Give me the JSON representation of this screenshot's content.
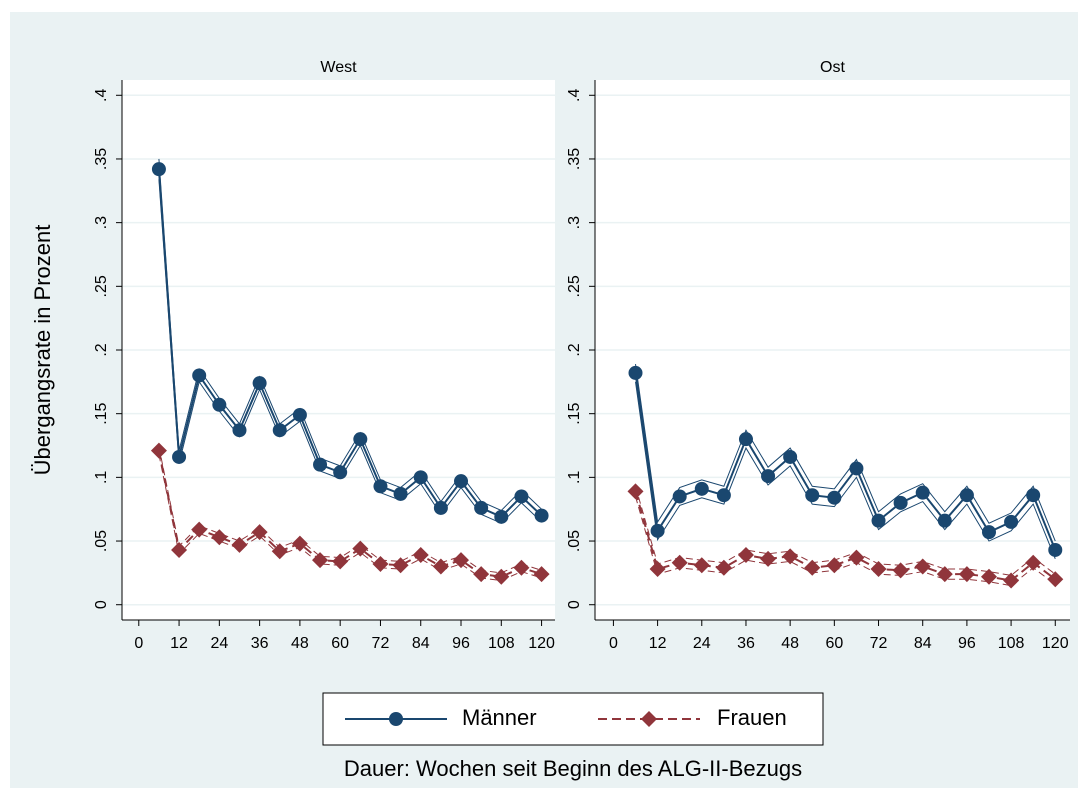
{
  "figure": {
    "ylabel": "Übergangsrate in Prozent",
    "xlabel": "Dauer: Wochen seit Beginn des ALG-II-Bezugs"
  },
  "chart_data": [
    {
      "type": "line",
      "title": "West",
      "x": [
        6,
        12,
        18,
        24,
        30,
        36,
        42,
        48,
        54,
        60,
        66,
        72,
        78,
        84,
        90,
        96,
        102,
        108,
        114,
        120
      ],
      "xlim": [
        -5,
        124
      ],
      "xticks": [
        0,
        12,
        24,
        36,
        48,
        60,
        72,
        84,
        96,
        108,
        120
      ],
      "ylim": [
        -0.012,
        0.412
      ],
      "yticks": [
        0,
        {
          "value": 0.05,
          "label": ".05"
        },
        {
          "value": 0.1,
          "label": ".1"
        },
        {
          "value": 0.15,
          "label": ".15"
        },
        {
          "value": 0.2,
          "label": ".2"
        },
        {
          "value": 0.25,
          "label": ".25"
        },
        {
          "value": 0.3,
          "label": ".3"
        },
        {
          "value": 0.35,
          "label": ".35"
        },
        {
          "value": 0.4,
          "label": ".4"
        }
      ],
      "grid": true,
      "series": [
        {
          "name": "Männer",
          "color": "#1a476f",
          "marker": "circle",
          "dash": false,
          "values": [
            0.342,
            0.116,
            0.18,
            0.157,
            0.137,
            0.174,
            0.137,
            0.149,
            0.11,
            0.104,
            0.13,
            0.093,
            0.087,
            0.1,
            0.076,
            0.097,
            0.076,
            0.069,
            0.085,
            0.07
          ],
          "lower": [
            0.334,
            0.111,
            0.175,
            0.152,
            0.132,
            0.169,
            0.132,
            0.144,
            0.105,
            0.099,
            0.125,
            0.088,
            0.082,
            0.095,
            0.071,
            0.092,
            0.071,
            0.064,
            0.08,
            0.065
          ],
          "upper": [
            0.35,
            0.121,
            0.185,
            0.162,
            0.142,
            0.179,
            0.142,
            0.154,
            0.115,
            0.109,
            0.135,
            0.098,
            0.092,
            0.105,
            0.081,
            0.102,
            0.081,
            0.074,
            0.09,
            0.075
          ]
        },
        {
          "name": "Frauen",
          "color": "#90353b",
          "marker": "diamond",
          "dash": true,
          "values": [
            0.121,
            0.043,
            0.059,
            0.053,
            0.047,
            0.057,
            0.042,
            0.048,
            0.035,
            0.034,
            0.044,
            0.032,
            0.031,
            0.039,
            0.03,
            0.035,
            0.024,
            0.022,
            0.029,
            0.024
          ],
          "lower": [
            0.118,
            0.04,
            0.056,
            0.05,
            0.044,
            0.054,
            0.039,
            0.045,
            0.032,
            0.031,
            0.041,
            0.029,
            0.028,
            0.036,
            0.027,
            0.032,
            0.021,
            0.019,
            0.026,
            0.021
          ],
          "upper": [
            0.124,
            0.046,
            0.062,
            0.056,
            0.05,
            0.06,
            0.045,
            0.051,
            0.038,
            0.037,
            0.047,
            0.035,
            0.034,
            0.042,
            0.033,
            0.038,
            0.027,
            0.025,
            0.032,
            0.027
          ]
        }
      ]
    },
    {
      "type": "line",
      "title": "Ost",
      "x": [
        6,
        12,
        18,
        24,
        30,
        36,
        42,
        48,
        54,
        60,
        66,
        72,
        78,
        84,
        90,
        96,
        102,
        108,
        114,
        120
      ],
      "xlim": [
        -5,
        124
      ],
      "xticks": [
        0,
        12,
        24,
        36,
        48,
        60,
        72,
        84,
        96,
        108,
        120
      ],
      "ylim": [
        -0.012,
        0.412
      ],
      "yticks": [
        0,
        {
          "value": 0.05,
          "label": ".05"
        },
        {
          "value": 0.1,
          "label": ".1"
        },
        {
          "value": 0.15,
          "label": ".15"
        },
        {
          "value": 0.2,
          "label": ".2"
        },
        {
          "value": 0.25,
          "label": ".25"
        },
        {
          "value": 0.3,
          "label": ".3"
        },
        {
          "value": 0.35,
          "label": ".35"
        },
        {
          "value": 0.4,
          "label": ".4"
        }
      ],
      "grid": true,
      "series": [
        {
          "name": "Männer",
          "color": "#1a476f",
          "marker": "circle",
          "dash": false,
          "values": [
            0.182,
            0.058,
            0.085,
            0.091,
            0.086,
            0.13,
            0.101,
            0.116,
            0.086,
            0.084,
            0.107,
            0.066,
            0.08,
            0.088,
            0.066,
            0.086,
            0.057,
            0.065,
            0.086,
            0.043
          ],
          "lower": [
            0.175,
            0.051,
            0.078,
            0.084,
            0.079,
            0.123,
            0.094,
            0.109,
            0.079,
            0.077,
            0.1,
            0.059,
            0.073,
            0.081,
            0.059,
            0.079,
            0.05,
            0.058,
            0.079,
            0.036
          ],
          "upper": [
            0.189,
            0.065,
            0.092,
            0.098,
            0.093,
            0.137,
            0.108,
            0.123,
            0.093,
            0.091,
            0.114,
            0.073,
            0.087,
            0.095,
            0.073,
            0.093,
            0.064,
            0.072,
            0.093,
            0.05
          ]
        },
        {
          "name": "Frauen",
          "color": "#90353b",
          "marker": "diamond",
          "dash": true,
          "values": [
            0.089,
            0.028,
            0.033,
            0.031,
            0.029,
            0.039,
            0.036,
            0.038,
            0.029,
            0.031,
            0.037,
            0.028,
            0.027,
            0.03,
            0.024,
            0.024,
            0.022,
            0.019,
            0.033,
            0.02
          ],
          "lower": [
            0.085,
            0.024,
            0.029,
            0.027,
            0.025,
            0.035,
            0.032,
            0.034,
            0.025,
            0.027,
            0.033,
            0.024,
            0.023,
            0.026,
            0.02,
            0.02,
            0.018,
            0.015,
            0.029,
            0.016
          ],
          "upper": [
            0.093,
            0.032,
            0.037,
            0.035,
            0.033,
            0.043,
            0.04,
            0.042,
            0.033,
            0.035,
            0.041,
            0.032,
            0.031,
            0.034,
            0.028,
            0.028,
            0.026,
            0.023,
            0.037,
            0.024
          ]
        }
      ]
    }
  ]
}
